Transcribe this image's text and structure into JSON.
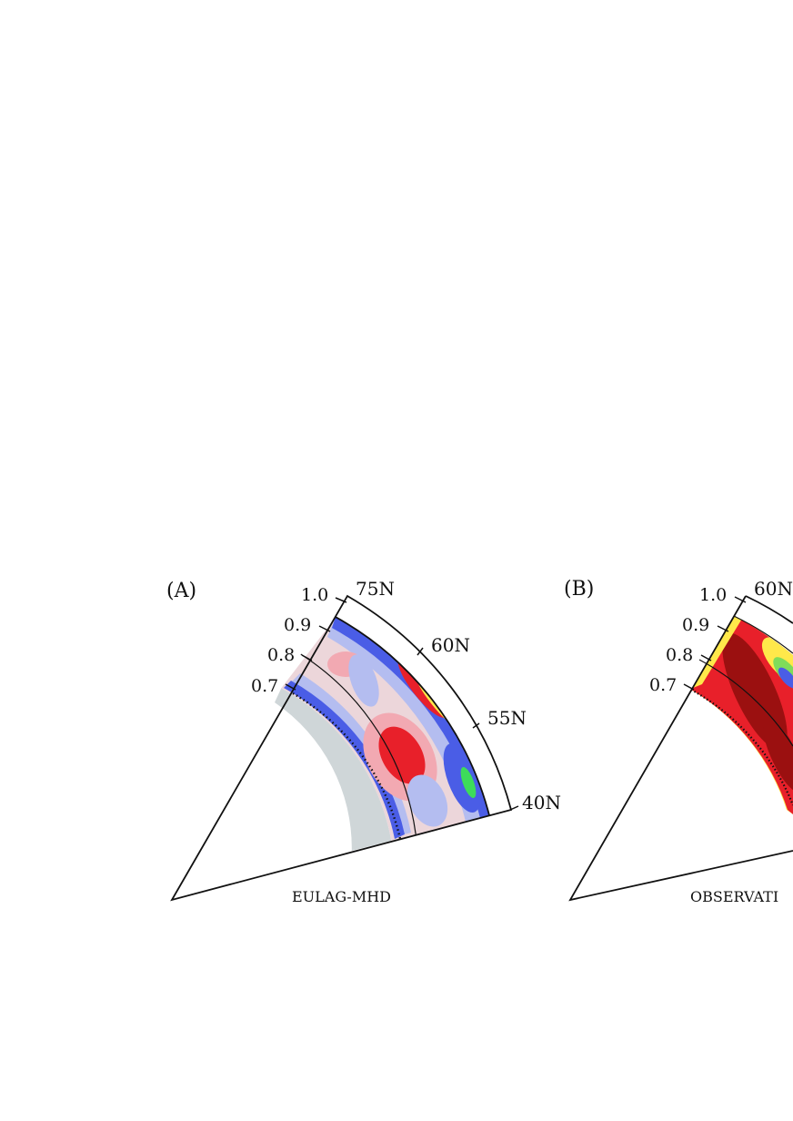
{
  "panels": [
    {
      "tag": "(A)",
      "caption": "EULAG-MHD",
      "radius_labels": [
        "1.0",
        "0.9",
        "0.8",
        "0.7"
      ],
      "latitude_labels": [
        "75N",
        "60N",
        "55N",
        "40N"
      ]
    },
    {
      "tag": "(B)",
      "caption": "OBSERVATI",
      "radius_labels": [
        "1.0",
        "0.9",
        "0.8",
        "0.7"
      ],
      "latitude_labels": [
        "60N"
      ]
    }
  ],
  "colors": {
    "red": "#e8202a",
    "pink": "#f2a9b2",
    "light_pink": "#ecd6da",
    "blue": "#4a5de6",
    "light_blue": "#b4bdf0",
    "gray": "#cfd6d8",
    "green": "#3ddc5a",
    "yellow": "#ffe84a",
    "dark_red": "#9b1010"
  }
}
